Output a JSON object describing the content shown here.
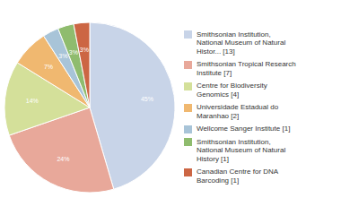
{
  "chart_data": {
    "type": "pie",
    "categories": [
      "Smithsonian Institution,\nNational Museum of Natural\nHistor... [13]",
      "Smithsonian Tropical Research\nInstitute [7]",
      "Centre for Biodiversity\nGenomics [4]",
      "Universidade Estadual do\nMaranhao [2]",
      "Wellcome Sanger Institute [1]",
      "Smithsonian Institution,\nNational Museum of Natural\nHistory [1]",
      "Canadian Centre for DNA\nBarcoding [1]"
    ],
    "values": [
      45,
      24,
      14,
      7,
      3,
      3,
      3
    ],
    "value_labels": [
      "45%",
      "24%",
      "14%",
      "7%",
      "3%",
      "3%",
      "3%"
    ],
    "colors": [
      "#c8d4e8",
      "#e8a89a",
      "#d4e09a",
      "#f0b870",
      "#a8c4d8",
      "#8fbc6e",
      "#cc6644"
    ],
    "data_labels": true,
    "legend": "right"
  }
}
